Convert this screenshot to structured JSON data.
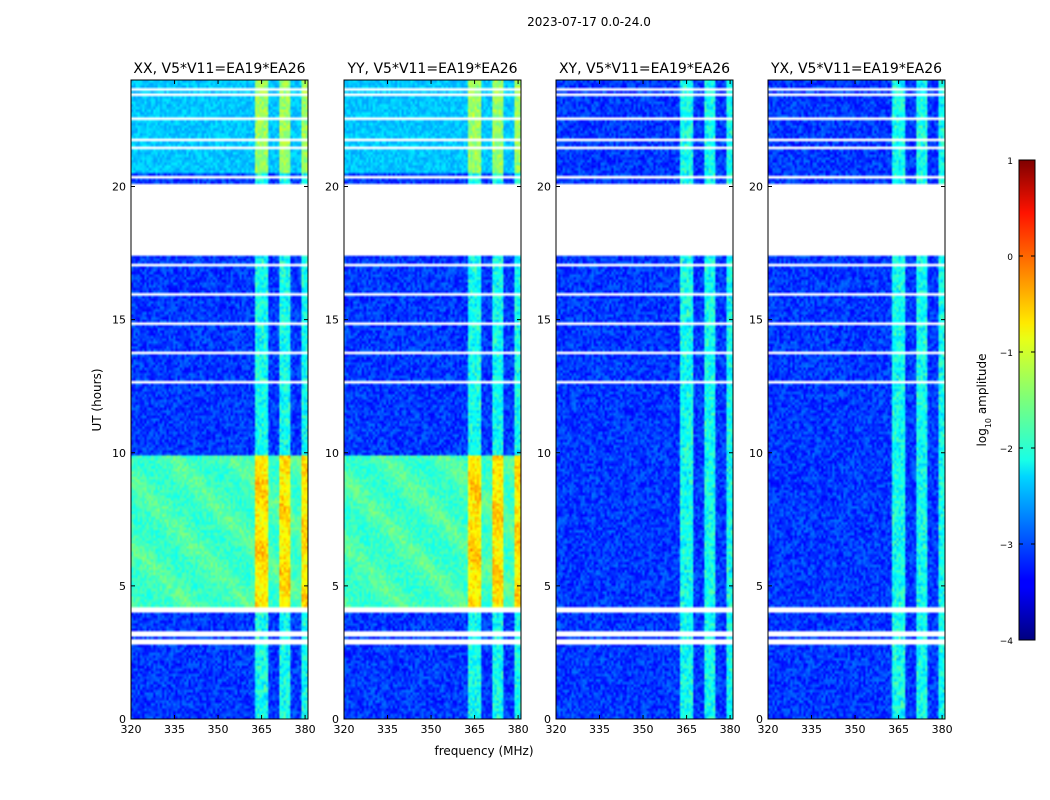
{
  "chart_data": {
    "type": "heatmap",
    "suptitle": "2023-07-17 0.0-24.0",
    "xlabel": "frequency (MHz)",
    "ylabel": "UT (hours)",
    "xlim": [
      320,
      381
    ],
    "ylim": [
      0,
      24
    ],
    "xticks": [
      320,
      335,
      350,
      365,
      380
    ],
    "yticks": [
      0,
      5,
      10,
      15,
      20
    ],
    "panels": [
      {
        "title": "XX, V5*V11=EA19*EA26",
        "pol": "XX"
      },
      {
        "title": "YY, V5*V11=EA19*EA26",
        "pol": "YY"
      },
      {
        "title": "XY, V5*V11=EA19*EA26",
        "pol": "XY"
      },
      {
        "title": "YX, V5*V11=EA19*EA26",
        "pol": "YX"
      }
    ],
    "colorbar": {
      "label": "log10 amplitude",
      "label_main": "log",
      "label_sub": "10",
      "label_rest": " amplitude",
      "range": [
        -4,
        1
      ],
      "ticks": [
        1,
        0,
        -1,
        -2,
        -3,
        -4
      ],
      "tick_labels": [
        "1",
        "0",
        "−1",
        "−2",
        "−3",
        "−4"
      ],
      "colormap": "jet"
    },
    "data_gaps_hours": [
      [
        17.45,
        20.1
      ],
      [
        4.0,
        4.25
      ],
      [
        2.8,
        3.0
      ],
      [
        3.1,
        3.3
      ]
    ],
    "rfi_band_mhz": [
      363,
      381
    ],
    "colors": {
      "background": "#ffffff",
      "axes": "#000000"
    }
  }
}
